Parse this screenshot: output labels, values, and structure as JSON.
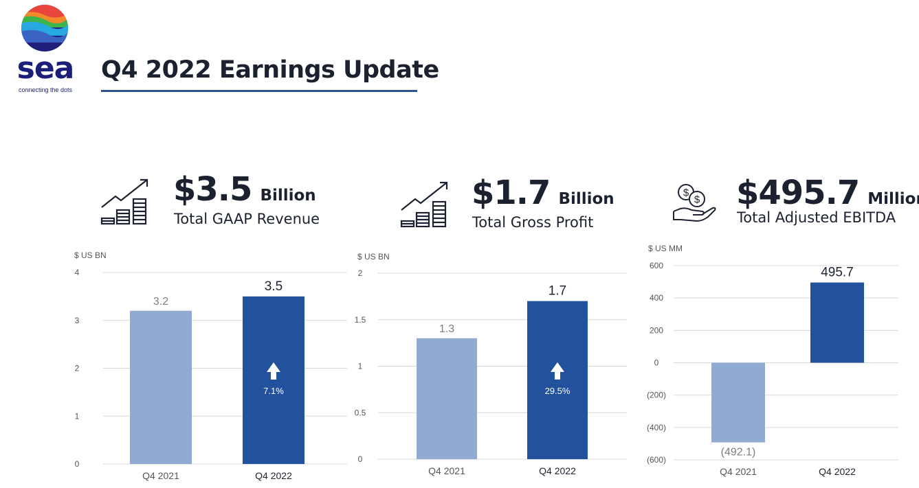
{
  "brand": {
    "name": "sea",
    "tagline": "connecting the dots"
  },
  "title": "Q4 2022 Earnings Update",
  "colors": {
    "prior_bar": "#90aad2",
    "current_bar": "#22529d",
    "title_rule": "#2f4f8f",
    "gridline": "#d8d8d8",
    "text": "#1c2130"
  },
  "kpis": [
    {
      "icon": "growth-chart-icon",
      "value": "$3.5",
      "unit": "Billion",
      "label": "Total GAAP Revenue"
    },
    {
      "icon": "growth-chart-icon",
      "value": "$1.7",
      "unit": "Billion",
      "label": "Total Gross Profit"
    },
    {
      "icon": "hand-coins-icon",
      "value": "$495.7",
      "unit": "Million",
      "label": "Total Adjusted EBITDA"
    }
  ],
  "chart_data": [
    {
      "type": "bar",
      "ylabel": "$ US BN",
      "categories": [
        "Q4 2021",
        "Q4 2022"
      ],
      "values": [
        3.2,
        3.5
      ],
      "data_labels": [
        "3.2",
        "3.5"
      ],
      "ylim": [
        0,
        4
      ],
      "yticks": [
        0,
        1,
        2,
        3,
        4
      ],
      "ytick_labels": [
        "0",
        "1",
        "2",
        "3",
        "4"
      ],
      "grid": true,
      "growth": {
        "icon": "up-arrow-icon",
        "label": "7.1%"
      }
    },
    {
      "type": "bar",
      "ylabel": "$ US BN",
      "categories": [
        "Q4 2021",
        "Q4 2022"
      ],
      "values": [
        1.3,
        1.7
      ],
      "data_labels": [
        "1.3",
        "1.7"
      ],
      "ylim": [
        0,
        2
      ],
      "yticks": [
        0,
        0.5,
        1,
        1.5,
        2
      ],
      "ytick_labels": [
        "0",
        "0.5",
        "1",
        "1.5",
        "2"
      ],
      "grid": true,
      "growth": {
        "icon": "up-arrow-icon",
        "label": "29.5%"
      }
    },
    {
      "type": "bar",
      "ylabel": "$ US MM",
      "categories": [
        "Q4 2021",
        "Q4 2022"
      ],
      "values": [
        -492.1,
        495.7
      ],
      "data_labels": [
        "(492.1)",
        "495.7"
      ],
      "ylim": [
        -600,
        600
      ],
      "yticks": [
        -600,
        -400,
        -200,
        0,
        200,
        400,
        600
      ],
      "ytick_labels": [
        "(600)",
        "(400)",
        "(200)",
        "0",
        "200",
        "400",
        "600"
      ],
      "grid": true
    }
  ]
}
